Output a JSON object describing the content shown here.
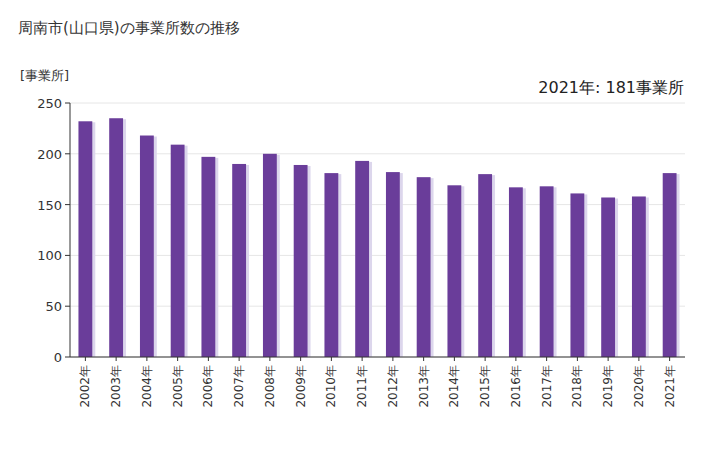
{
  "chart_data": {
    "type": "bar",
    "title": "周南市(山口県)の事業所数の推移",
    "y_label": "[事業所]",
    "annotation": "2021年: 181事業所",
    "categories": [
      "2002年",
      "2003年",
      "2004年",
      "2005年",
      "2006年",
      "2007年",
      "2008年",
      "2009年",
      "2010年",
      "2011年",
      "2012年",
      "2013年",
      "2014年",
      "2015年",
      "2016年",
      "2017年",
      "2018年",
      "2019年",
      "2020年",
      "2021年"
    ],
    "values": [
      232,
      235,
      218,
      209,
      197,
      190,
      200,
      189,
      181,
      193,
      182,
      177,
      169,
      180,
      167,
      168,
      161,
      157,
      158,
      181
    ],
    "color": "#6a3d9a",
    "ylim": [
      0,
      250
    ],
    "yticks": [
      0,
      50,
      100,
      150,
      200,
      250
    ],
    "grid": true
  }
}
